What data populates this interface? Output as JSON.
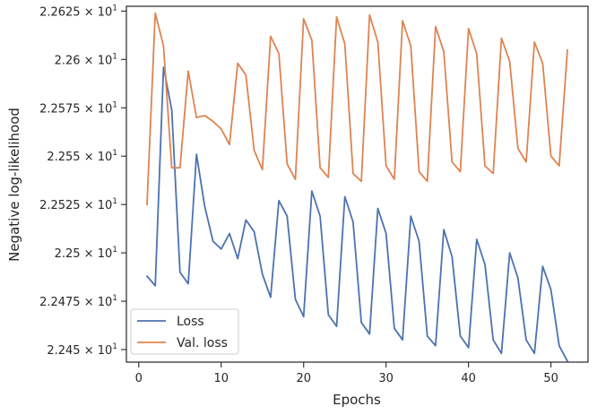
{
  "chart_data": {
    "type": "line",
    "xlabel": "Epochs",
    "ylabel": "Negative log-likelihood",
    "xlim": [
      -1.5,
      54.5
    ],
    "ylim": [
      22.4435,
      22.6275
    ],
    "x_ticks": [
      0,
      10,
      20,
      30,
      40,
      50
    ],
    "y_ticks": [
      22.45,
      22.475,
      22.5,
      22.525,
      22.55,
      22.575,
      22.6,
      22.625
    ],
    "y_tick_labels": [
      {
        "mantissa": "2.245",
        "exp": "1"
      },
      {
        "mantissa": "2.2475",
        "exp": "1"
      },
      {
        "mantissa": "2.25",
        "exp": "1"
      },
      {
        "mantissa": "2.2525",
        "exp": "1"
      },
      {
        "mantissa": "2.255",
        "exp": "1"
      },
      {
        "mantissa": "2.2575",
        "exp": "1"
      },
      {
        "mantissa": "2.26",
        "exp": "1"
      },
      {
        "mantissa": "2.2625",
        "exp": "1"
      }
    ],
    "legend_position": "lower-left",
    "grid": false,
    "x": [
      1,
      2,
      3,
      4,
      5,
      6,
      7,
      8,
      9,
      10,
      11,
      12,
      13,
      14,
      15,
      16,
      17,
      18,
      19,
      20,
      21,
      22,
      23,
      24,
      25,
      26,
      27,
      28,
      29,
      30,
      31,
      32,
      33,
      34,
      35,
      36,
      37,
      38,
      39,
      40,
      41,
      42,
      43,
      44,
      45,
      46,
      47,
      48,
      49,
      50,
      51,
      52
    ],
    "series": [
      {
        "name": "Loss",
        "color": "#4c72b0",
        "values": [
          22.488,
          22.483,
          22.596,
          22.574,
          22.49,
          22.484,
          22.551,
          22.524,
          22.506,
          22.502,
          22.51,
          22.497,
          22.517,
          22.511,
          22.489,
          22.477,
          22.527,
          22.519,
          22.476,
          22.467,
          22.532,
          22.519,
          22.468,
          22.462,
          22.529,
          22.516,
          22.464,
          22.458,
          22.523,
          22.51,
          22.461,
          22.455,
          22.519,
          22.506,
          22.457,
          22.452,
          22.512,
          22.498,
          22.457,
          22.451,
          22.507,
          22.494,
          22.455,
          22.448,
          22.5,
          22.487,
          22.455,
          22.448,
          22.493,
          22.481,
          22.452,
          22.444
        ]
      },
      {
        "name": "Val. loss",
        "color": "#dd8452",
        "values": [
          22.525,
          22.624,
          22.607,
          22.544,
          22.544,
          22.594,
          22.57,
          22.571,
          22.568,
          22.564,
          22.556,
          22.598,
          22.592,
          22.553,
          22.543,
          22.612,
          22.603,
          22.546,
          22.538,
          22.621,
          22.61,
          22.544,
          22.539,
          22.622,
          22.608,
          22.541,
          22.537,
          22.623,
          22.609,
          22.545,
          22.538,
          22.62,
          22.607,
          22.542,
          22.537,
          22.617,
          22.604,
          22.547,
          22.542,
          22.616,
          22.603,
          22.545,
          22.541,
          22.611,
          22.599,
          22.554,
          22.547,
          22.609,
          22.598,
          22.55,
          22.545,
          22.605
        ]
      }
    ]
  }
}
